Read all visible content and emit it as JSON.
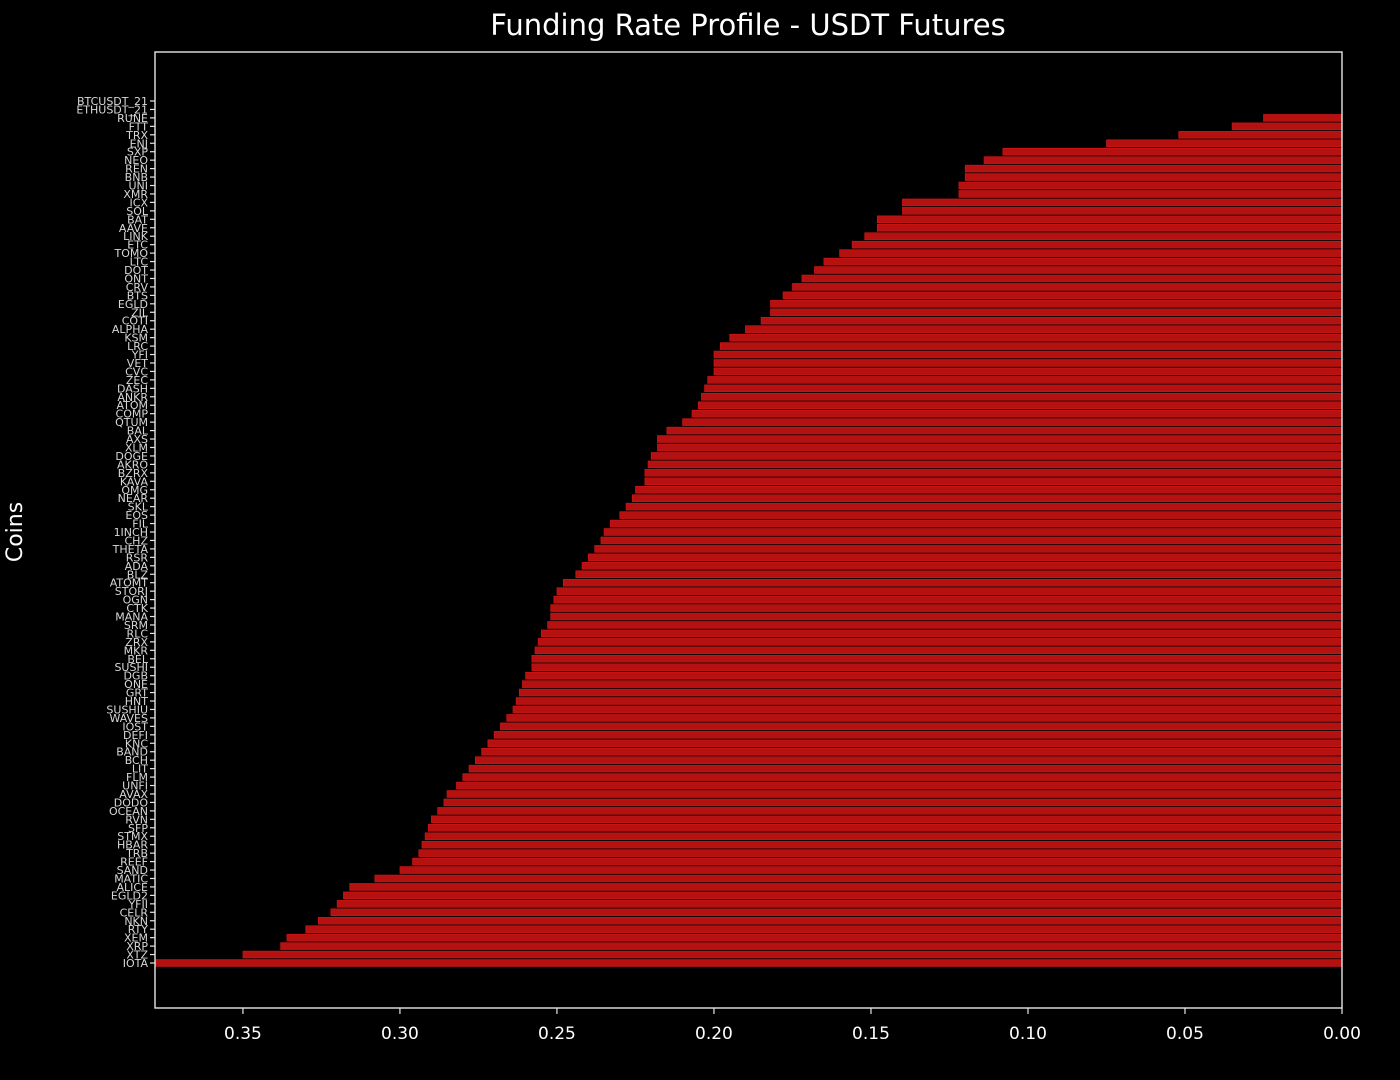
{
  "chart_data": {
    "type": "bar",
    "orientation": "horizontal",
    "title": "Funding Rate Profile - USDT Futures",
    "xlabel": "",
    "ylabel": "Coins",
    "xlim": [
      0.378,
      0.0
    ],
    "x_inverted": true,
    "xticks": [
      0.35,
      0.3,
      0.25,
      0.2,
      0.15,
      0.1,
      0.05,
      0.0
    ],
    "xtick_labels": [
      "0.35",
      "0.30",
      "0.25",
      "0.20",
      "0.15",
      "0.10",
      "0.05",
      "0.00"
    ],
    "bar_color": "#b51111",
    "background_color": "#000000",
    "text_color": "#ffffff",
    "grid": false,
    "legend": "none",
    "categories": [
      "BTCUSDT_21",
      "ETHUSDT_21",
      "RUNE",
      "FTT",
      "TRX",
      "ENJ",
      "SXP",
      "NEO",
      "REN",
      "BNB",
      "UNI",
      "XMR",
      "ICX",
      "SOL",
      "BAT",
      "AAVE",
      "LINK",
      "ETC",
      "TOMO",
      "LTC",
      "DOT",
      "ONT",
      "CRV",
      "BTS",
      "EGLD",
      "ZIL",
      "COTI",
      "ALPHA",
      "KSM",
      "LRC",
      "YFI",
      "VET",
      "CVC",
      "ZEC",
      "DASH",
      "ANKR",
      "ATOM",
      "COMP",
      "QTUM",
      "BAL",
      "AXS",
      "XLM",
      "DOGE",
      "AKRO",
      "BZRX",
      "KAVA",
      "OMG",
      "NEAR",
      "SKL",
      "EOS",
      "FIL",
      "1INCH",
      "CHZ",
      "THETA",
      "RSR",
      "ADA",
      "BLZ",
      "ATOMT",
      "STORJ",
      "OGN",
      "CTK",
      "MANA",
      "SRM",
      "RLC",
      "ZRX",
      "MKR",
      "BEL",
      "SUSHI",
      "DGB",
      "ONE",
      "GRT",
      "HNT",
      "SUSHIU",
      "WAVES",
      "IOST",
      "DEFI",
      "KNC",
      "BAND",
      "BCH",
      "LIT",
      "FLM",
      "UNFI",
      "AVAX",
      "DODO",
      "OCEAN",
      "RVN",
      "SFP",
      "STMX",
      "HBAR",
      "TRB",
      "REEF",
      "SAND",
      "MATIC",
      "ALICE",
      "EGLD2",
      "YFII",
      "CELR",
      "NKN",
      "RTY",
      "XEM",
      "XRP",
      "XTZ",
      "IOTA"
    ],
    "values": [
      0.0,
      0.0,
      0.025,
      0.035,
      0.052,
      0.075,
      0.108,
      0.114,
      0.12,
      0.12,
      0.122,
      0.122,
      0.14,
      0.14,
      0.148,
      0.148,
      0.152,
      0.156,
      0.16,
      0.165,
      0.168,
      0.172,
      0.175,
      0.178,
      0.182,
      0.182,
      0.185,
      0.19,
      0.195,
      0.198,
      0.2,
      0.2,
      0.2,
      0.202,
      0.203,
      0.204,
      0.205,
      0.207,
      0.21,
      0.215,
      0.218,
      0.218,
      0.22,
      0.221,
      0.222,
      0.222,
      0.225,
      0.226,
      0.228,
      0.23,
      0.233,
      0.235,
      0.236,
      0.238,
      0.24,
      0.242,
      0.244,
      0.248,
      0.25,
      0.251,
      0.252,
      0.252,
      0.253,
      0.255,
      0.256,
      0.257,
      0.258,
      0.258,
      0.26,
      0.261,
      0.262,
      0.263,
      0.264,
      0.266,
      0.268,
      0.27,
      0.272,
      0.274,
      0.276,
      0.278,
      0.28,
      0.282,
      0.285,
      0.286,
      0.288,
      0.29,
      0.291,
      0.292,
      0.293,
      0.294,
      0.296,
      0.3,
      0.308,
      0.316,
      0.318,
      0.32,
      0.322,
      0.326,
      0.33,
      0.336,
      0.338,
      0.35,
      0.378
    ]
  }
}
